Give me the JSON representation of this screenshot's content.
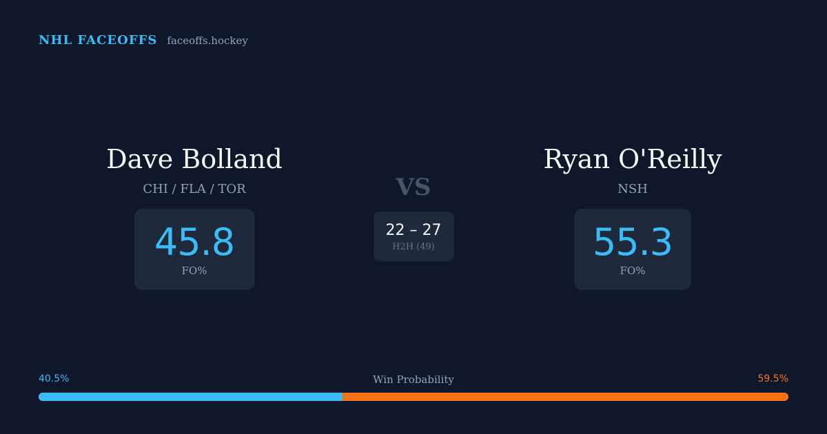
{
  "brand": {
    "name": "NHL FACEOFFS",
    "domain": "faceoffs.hockey"
  },
  "colors": {
    "accent_left": "#38bdf8",
    "accent_right": "#f97316",
    "background": "#0f172a",
    "card": "#1e293b"
  },
  "left_player": {
    "name": "Dave Bolland",
    "teams": "CHI / FLA / TOR",
    "fo_pct": "45.8",
    "fo_label": "FO%"
  },
  "right_player": {
    "name": "Ryan O'Reilly",
    "teams": "NSH",
    "fo_pct": "55.3",
    "fo_label": "FO%"
  },
  "matchup": {
    "vs_label": "VS",
    "h2h_score": "22 – 27",
    "h2h_label": "H2H (49)"
  },
  "win_probability": {
    "title": "Win Probability",
    "left_label": "40.5%",
    "right_label": "59.5%",
    "left_value": 40.5,
    "right_value": 59.5
  }
}
